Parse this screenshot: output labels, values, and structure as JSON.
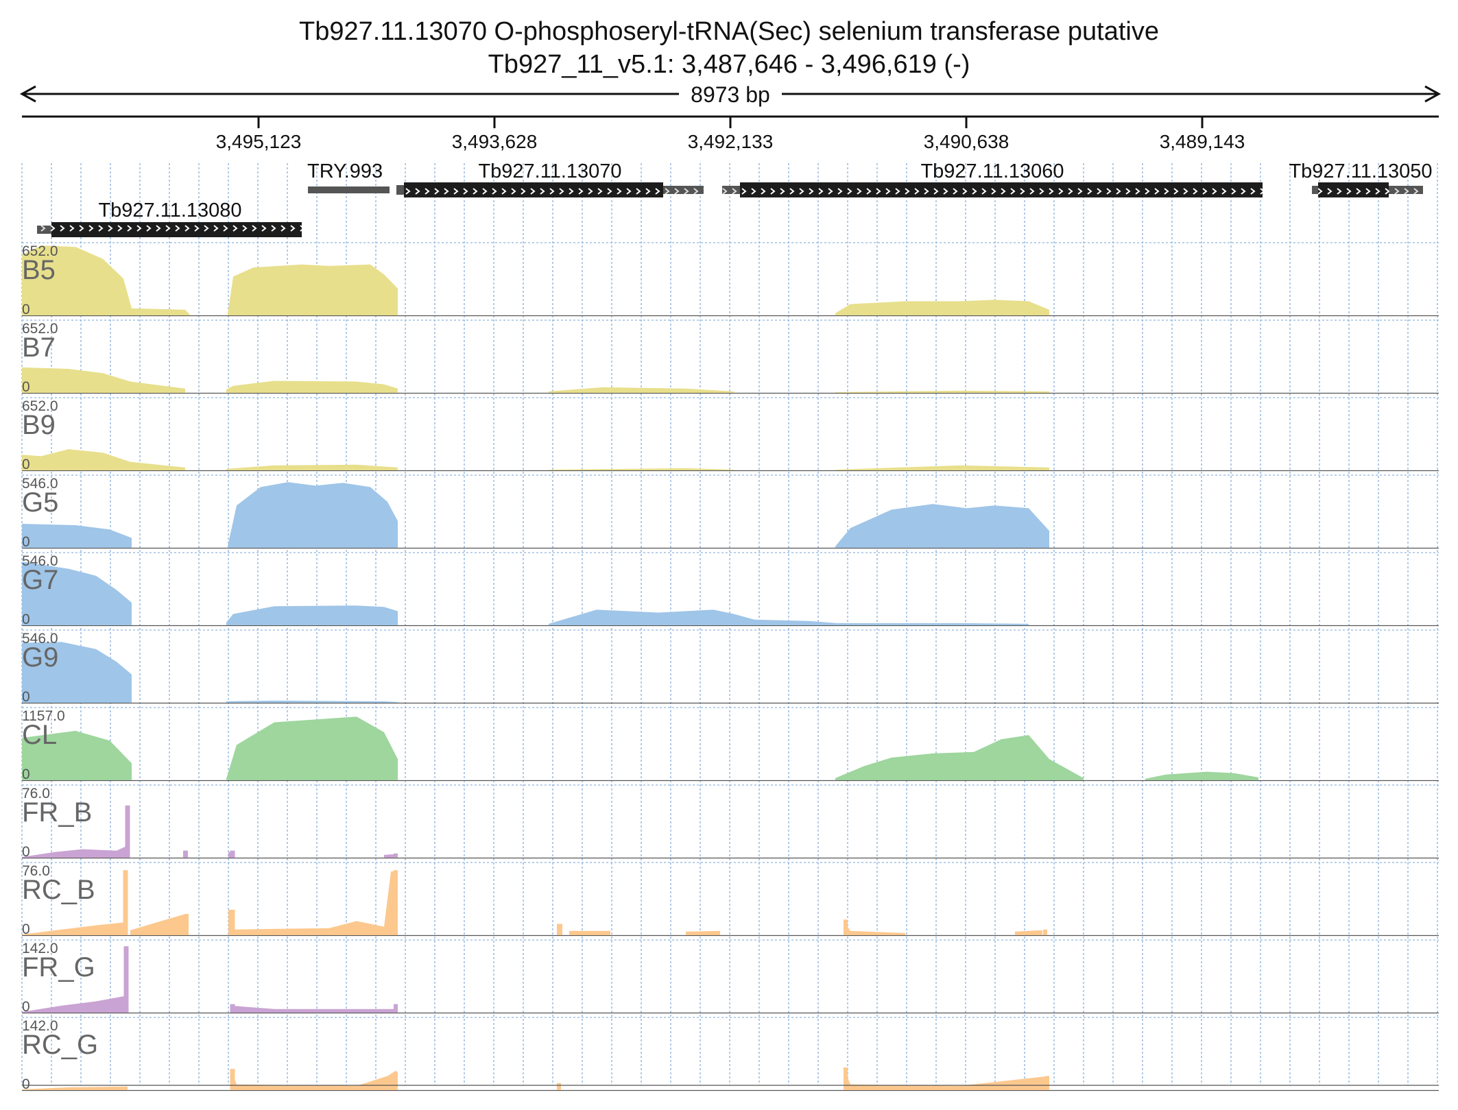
{
  "header": {
    "title": "Tb927.11.13070  O-phosphoseryl-tRNA(Sec) selenium transferase  putative",
    "subtitle": "Tb927_11_v5.1: 3,487,646 - 3,496,619 (-)"
  },
  "ruler": {
    "span_label": "8973 bp",
    "ticks": [
      "3,495,123",
      "3,493,628",
      "3,492,133",
      "3,490,638",
      "3,489,143"
    ]
  },
  "genes": [
    {
      "name": "TRY.993",
      "kind": "ncrna"
    },
    {
      "name": "Tb927.11.13070",
      "kind": "cds"
    },
    {
      "name": "Tb927.11.13060",
      "kind": "cds"
    },
    {
      "name": "Tb927.11.13050",
      "kind": "cds"
    },
    {
      "name": "Tb927.11.13080",
      "kind": "cds"
    }
  ],
  "tracks": [
    {
      "name": "B5",
      "max": "652.0",
      "min": "0",
      "color": "#e8df8c"
    },
    {
      "name": "B7",
      "max": "652.0",
      "min": "0",
      "color": "#e8df8c"
    },
    {
      "name": "B9",
      "max": "652.0",
      "min": "0",
      "color": "#e8df8c"
    },
    {
      "name": "G5",
      "max": "546.0",
      "min": "0",
      "color": "#9fc5e8"
    },
    {
      "name": "G7",
      "max": "546.0",
      "min": "0",
      "color": "#9fc5e8"
    },
    {
      "name": "G9",
      "max": "546.0",
      "min": "0",
      "color": "#9fc5e8"
    },
    {
      "name": "CL",
      "max": "1157.0",
      "min": "0",
      "color": "#9ed69e"
    },
    {
      "name": "FR_B",
      "max": "76.0",
      "min": "0",
      "color": "#c9a3d3"
    },
    {
      "name": "RC_B",
      "max": "76.0",
      "min": "0",
      "color": "#fcc88e"
    },
    {
      "name": "FR_G",
      "max": "142.0",
      "min": "0",
      "color": "#c9a3d3"
    },
    {
      "name": "RC_G",
      "max": "142.0",
      "min": "0",
      "color": "#fcc88e"
    }
  ],
  "colors": {
    "gene_block": "#1c1c1c",
    "ncrna_block": "#555555",
    "grid": "#8fb5df",
    "axis": "#111111"
  }
}
